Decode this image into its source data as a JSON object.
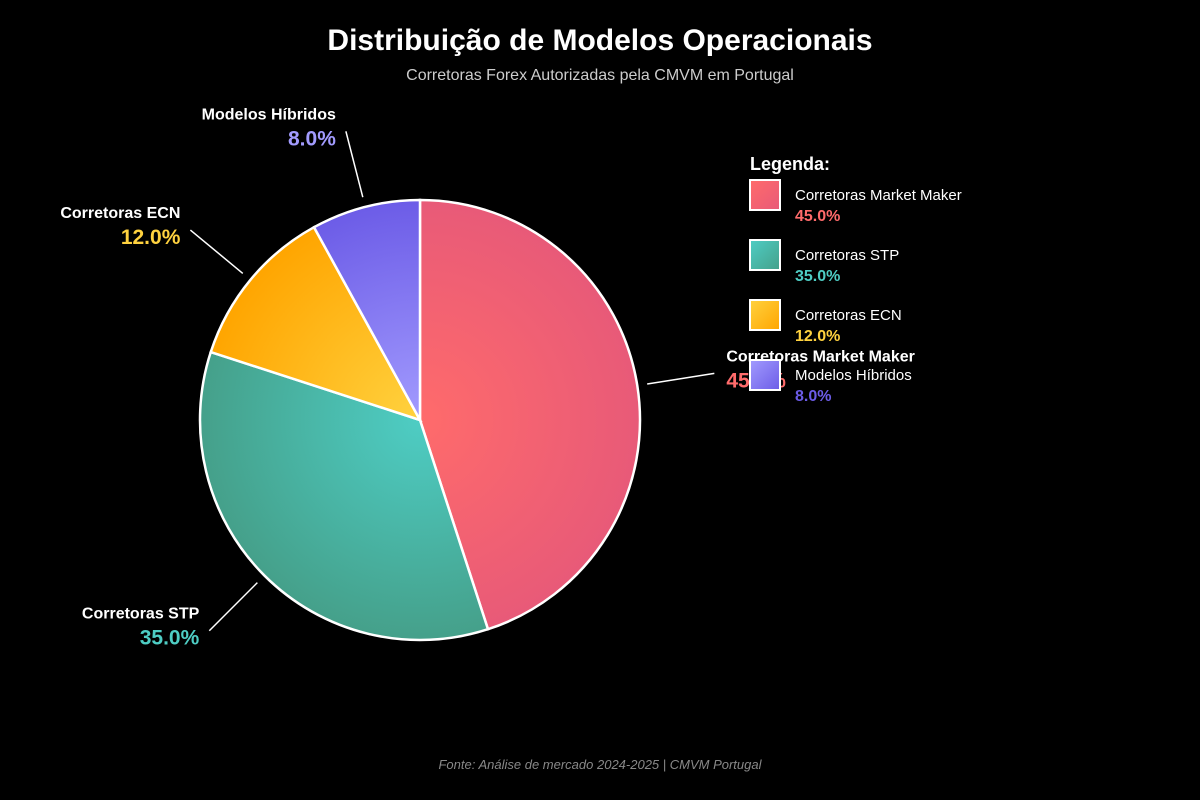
{
  "chart_data": {
    "type": "pie",
    "title": "Distribuição de Modelos Operacionais",
    "subtitle": "Corretoras Forex Autorizadas pela CMVM em Portugal",
    "source": "Fonte: Análise de mercado 2024-2025 | CMVM Portugal",
    "legend_title": "Legenda:",
    "legend_placement": "right",
    "slices": [
      {
        "label": "Corretoras Market Maker",
        "value": 45.0,
        "pct_label": "45.0%",
        "color": "#ff6b6b",
        "color2": "#e85a78"
      },
      {
        "label": "Corretoras STP",
        "value": 35.0,
        "pct_label": "35.0%",
        "color": "#4ecdc4",
        "color2": "#45a08a"
      },
      {
        "label": "Corretoras ECN",
        "value": 12.0,
        "pct_label": "12.0%",
        "color": "#ffd23f",
        "color2": "#ffa500"
      },
      {
        "label": "Modelos Híbridos",
        "value": 8.0,
        "pct_label": "8.0%",
        "color": "#a29bfe",
        "color2": "#6c5ce7"
      }
    ]
  }
}
